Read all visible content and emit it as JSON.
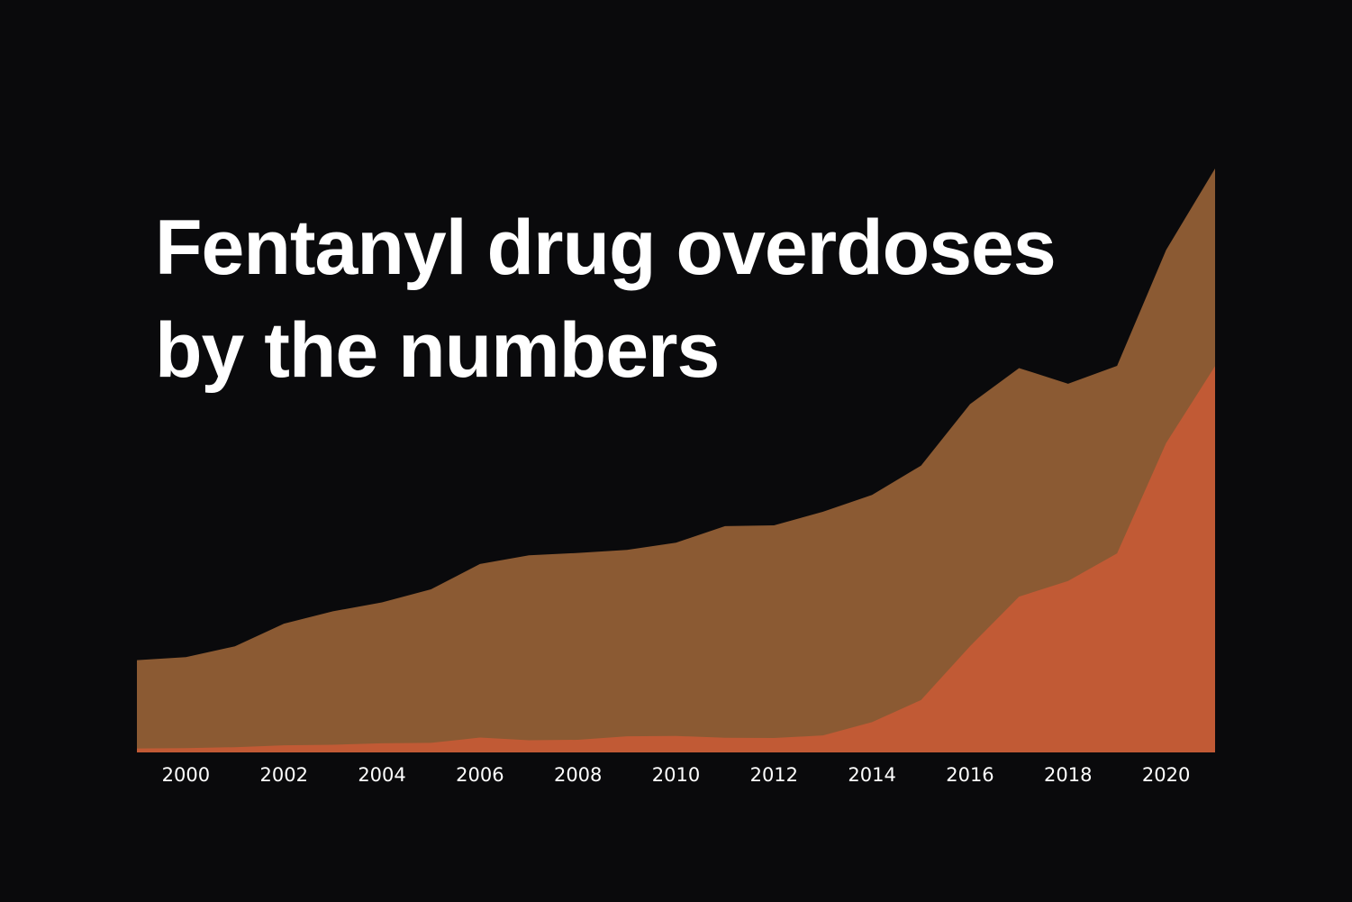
{
  "chart_data": {
    "type": "area",
    "title": "Fentanyl drug overdoses by the numbers",
    "x": [
      1999,
      2000,
      2001,
      2002,
      2003,
      2004,
      2005,
      2006,
      2007,
      2008,
      2009,
      2010,
      2011,
      2012,
      2013,
      2014,
      2015,
      2016,
      2017,
      2018,
      2019,
      2020,
      2021
    ],
    "series": [
      {
        "color": "#8b5a33",
        "values": [
          16849,
          17415,
          19394,
          23518,
          25785,
          27424,
          29813,
          34425,
          36010,
          36450,
          37004,
          38329,
          41340,
          41502,
          43982,
          47055,
          52404,
          63632,
          70237,
          67367,
          70630,
          91799,
          106699
        ]
      },
      {
        "color": "#c15a35",
        "values": [
          730,
          782,
          957,
          1295,
          1400,
          1664,
          1742,
          2707,
          2213,
          2306,
          2946,
          3007,
          2666,
          2628,
          3105,
          5544,
          9580,
          19413,
          28466,
          31335,
          36359,
          56516,
          70601
        ]
      }
    ],
    "xlim": [
      1999,
      2021
    ],
    "xticks": [
      2000,
      2002,
      2004,
      2006,
      2008,
      2010,
      2012,
      2014,
      2016,
      2018,
      2020
    ],
    "ylim": [
      0,
      106699
    ],
    "background": "#0a0a0c"
  }
}
